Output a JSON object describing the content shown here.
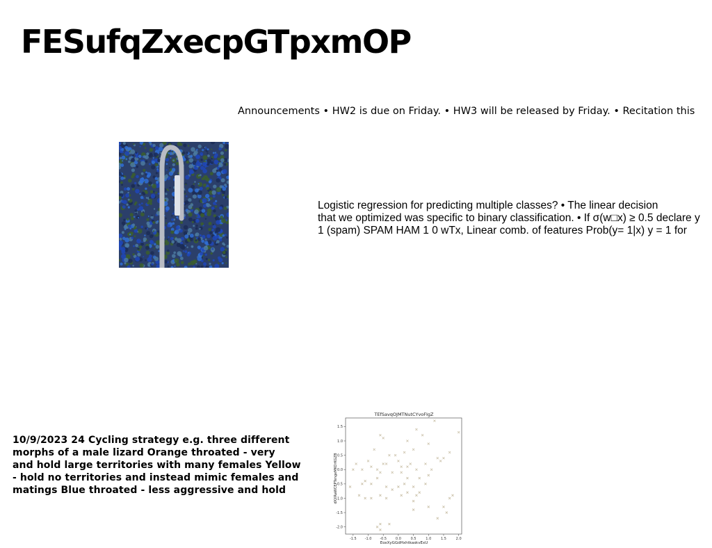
{
  "slide": {
    "title": "FESufqZxecpGTpxmOP",
    "announcement": "Announcements • HW2 is due on Friday. • HW3 will be released by Friday. • Recitation this",
    "logistic_lines": [
      "Logistic regression for predicting multiple classes? • The linear decision",
      "that we optimized was specific to binary classification. • If σ(w□x) ≥ 0.5 declare y",
      "1 (spam) SPAM HAM 1 0 wTx, Linear comb. of features Prob(y= 1|x) y = 1 for"
    ],
    "lizard_lines": [
      "10/9/2023 24 Cycling strategy e.g. three different",
      "morphs of a male lizard Orange throated - very",
      "and hold large territories with many females Yellow",
      "- hold no territories and instead mimic females and",
      "matings Blue throated - less aggressive and hold"
    ]
  },
  "colors": {
    "marker": "#c9bfa6",
    "photo_background": "#2b3f6a",
    "photo_foliage": [
      "#1f47b8",
      "#2f6fd6",
      "#3c5f2c",
      "#4c7aa0",
      "#1b2b55"
    ],
    "photo_road": "#b9bcc4"
  },
  "photo_icon": "aerial-map-photo",
  "chart_data": {
    "type": "scatter",
    "title": "TEfSavqOJMTNutCYvoFIgZ",
    "xlabel": "EoxXyGGdHxhtkaskvExU",
    "ylabel": "dXXRaWCEPTengeMKOrKGZB",
    "xlim": [
      -1.75,
      2.1
    ],
    "ylim": [
      -2.25,
      1.8
    ],
    "xticks": [
      "-1.5",
      "-1.0",
      "-0.5",
      "0.0",
      "0.5",
      "1.0",
      "1.5",
      "2.0"
    ],
    "xtick_values": [
      -1.5,
      -1.0,
      -0.5,
      0.0,
      0.5,
      1.0,
      1.5,
      2.0
    ],
    "yticks": [
      "1.5",
      "1.0",
      "0.5",
      "0.0",
      "-0.5",
      "-1.0",
      "-1.5",
      "-2.0"
    ],
    "ytick_values": [
      1.5,
      1.0,
      0.5,
      0.0,
      -0.5,
      -1.0,
      -1.5,
      -2.0
    ],
    "marker": "x",
    "points": [
      [
        1.2,
        1.7
      ],
      [
        2.0,
        1.3
      ],
      [
        -0.6,
        1.2
      ],
      [
        -0.5,
        1.1
      ],
      [
        0.3,
        1.0
      ],
      [
        0.6,
        1.4
      ],
      [
        0.8,
        1.2
      ],
      [
        1.0,
        0.9
      ],
      [
        -0.8,
        0.7
      ],
      [
        -0.3,
        0.5
      ],
      [
        -0.1,
        0.5
      ],
      [
        0.2,
        0.6
      ],
      [
        1.5,
        0.4
      ],
      [
        1.3,
        0.4
      ],
      [
        1.7,
        0.6
      ],
      [
        0.5,
        0.7
      ],
      [
        -1.4,
        0.2
      ],
      [
        -1.2,
        0.0
      ],
      [
        -1.0,
        0.3
      ],
      [
        -0.9,
        0.1
      ],
      [
        -0.7,
        0.0
      ],
      [
        -0.5,
        0.2
      ],
      [
        -0.4,
        0.2
      ],
      [
        0.0,
        0.3
      ],
      [
        0.1,
        0.1
      ],
      [
        0.3,
        0.1
      ],
      [
        0.4,
        0.2
      ],
      [
        0.6,
        0.0
      ],
      [
        0.9,
        0.2
      ],
      [
        1.1,
        0.0
      ],
      [
        1.4,
        0.3
      ],
      [
        -1.5,
        0.0
      ],
      [
        -1.6,
        -0.6
      ],
      [
        -1.2,
        -0.5
      ],
      [
        -1.1,
        -0.4
      ],
      [
        -0.9,
        -0.5
      ],
      [
        -0.7,
        -0.3
      ],
      [
        -0.6,
        -0.1
      ],
      [
        -0.4,
        -0.6
      ],
      [
        -0.2,
        -0.7
      ],
      [
        0.0,
        -0.6
      ],
      [
        0.2,
        -0.5
      ],
      [
        0.3,
        -0.3
      ],
      [
        0.5,
        -0.6
      ],
      [
        0.7,
        -0.8
      ],
      [
        0.9,
        -0.5
      ],
      [
        1.0,
        -0.2
      ],
      [
        -1.3,
        -0.9
      ],
      [
        -1.1,
        -1.0
      ],
      [
        -0.9,
        -1.0
      ],
      [
        -0.6,
        -0.9
      ],
      [
        -0.4,
        -1.0
      ],
      [
        0.1,
        -0.9
      ],
      [
        0.3,
        -0.8
      ],
      [
        0.5,
        -1.1
      ],
      [
        0.6,
        -0.9
      ],
      [
        1.8,
        -0.9
      ],
      [
        1.7,
        -1.0
      ],
      [
        0.5,
        -1.4
      ],
      [
        1.0,
        -1.3
      ],
      [
        1.5,
        -1.3
      ],
      [
        1.6,
        -1.5
      ],
      [
        1.3,
        -1.7
      ],
      [
        -0.3,
        -1.9
      ],
      [
        -0.6,
        -1.9
      ],
      [
        -0.7,
        -2.0
      ],
      [
        -0.6,
        -2.1
      ],
      [
        0.1,
        -0.1
      ],
      [
        -0.2,
        -0.1
      ],
      [
        0.7,
        -0.3
      ]
    ]
  }
}
